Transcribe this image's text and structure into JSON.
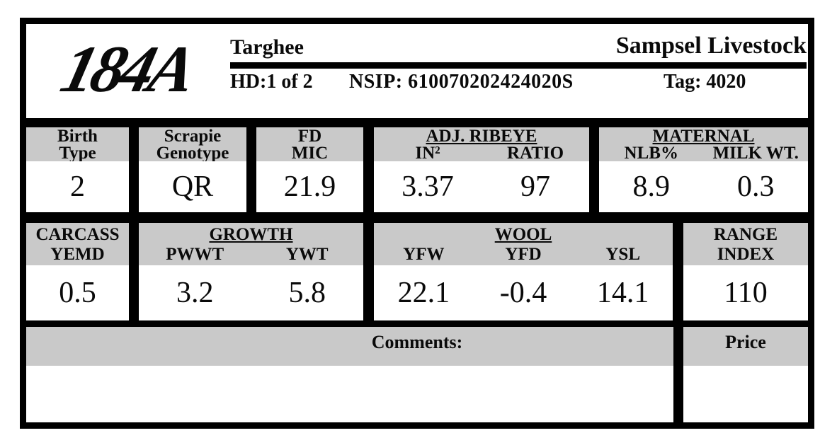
{
  "colors": {
    "band_gray": "#c9c9c9",
    "border_black": "#000000"
  },
  "logo": {
    "text": "184A"
  },
  "header": {
    "breed": "Targhee",
    "company": "Sampsel Livestock",
    "hd": "HD:1 of 2",
    "nsip": "NSIP: 610070202424020S",
    "tag": "Tag: 4020"
  },
  "row1": {
    "birth": {
      "l1": "Birth",
      "l2": "Type",
      "value": "2"
    },
    "scrapie": {
      "l1": "Scrapie",
      "l2": "Genotype",
      "value": "QR"
    },
    "fd": {
      "l1": "FD",
      "l2": "MIC",
      "value": "21.9"
    },
    "ribeye": {
      "title": "ADJ. RIBEYE",
      "c1": {
        "label": "IN²",
        "value": "3.37"
      },
      "c2": {
        "label": "RATIO",
        "value": "97"
      }
    },
    "maternal": {
      "title": "MATERNAL",
      "c1": {
        "label": "NLB%",
        "value": "8.9"
      },
      "c2": {
        "label": "MILK WT.",
        "value": "0.3"
      }
    }
  },
  "row2": {
    "carcass": {
      "l1": "CARCASS",
      "l2": "YEMD",
      "value": "0.5"
    },
    "growth": {
      "title": "GROWTH",
      "c1": {
        "label": "PWWT",
        "value": "3.2"
      },
      "c2": {
        "label": "YWT",
        "value": "5.8"
      }
    },
    "wool": {
      "title": "WOOL",
      "c1": {
        "label": "YFW",
        "value": "22.1"
      },
      "c2": {
        "label": "YFD",
        "value": "-0.4"
      },
      "c3": {
        "label": "YSL",
        "value": "14.1"
      }
    },
    "range": {
      "l1": "RANGE",
      "l2": "INDEX",
      "value": "110"
    }
  },
  "footer": {
    "comments_label": "Comments:",
    "comments_value": "",
    "price_label": "Price",
    "price_value": ""
  }
}
